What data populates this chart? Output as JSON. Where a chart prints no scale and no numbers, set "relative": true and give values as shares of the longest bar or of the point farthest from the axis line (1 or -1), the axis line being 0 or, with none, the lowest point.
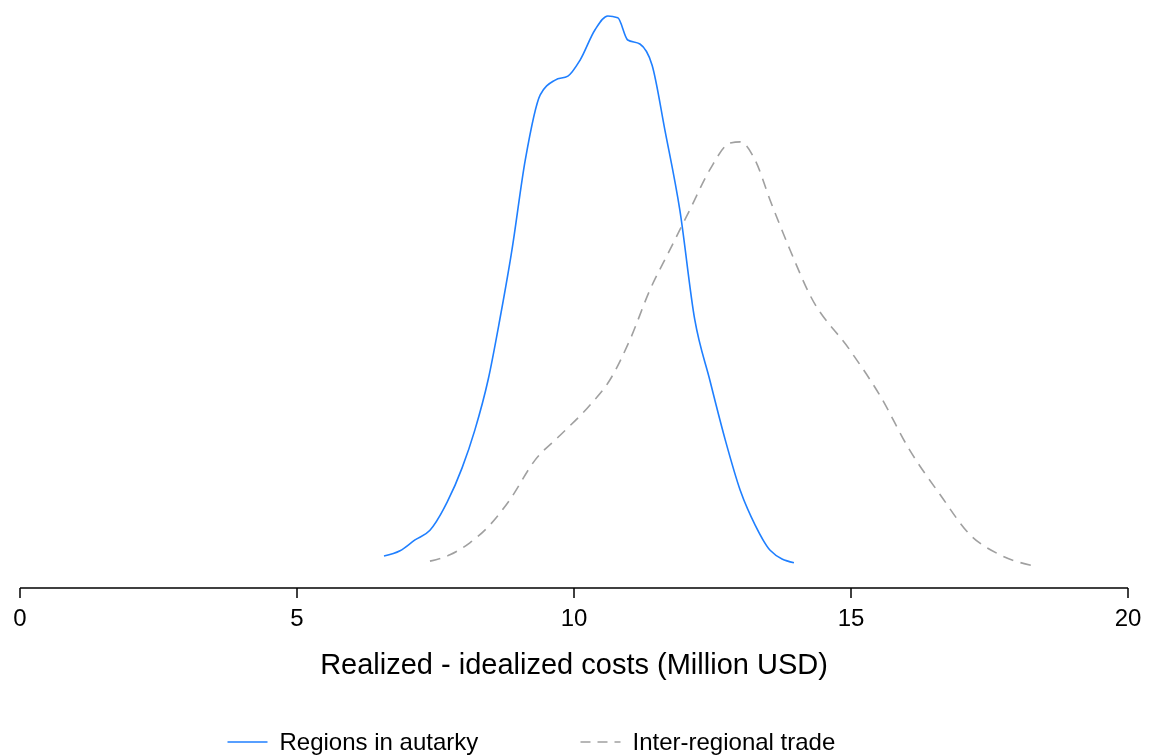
{
  "chart_data": {
    "type": "line",
    "relative": true,
    "xlabel": "Realized - idealized costs (Million USD)",
    "xlim": [
      0,
      20
    ],
    "xticks": [
      0,
      5,
      10,
      15,
      20
    ],
    "legend": "bottom",
    "grid": false,
    "series": [
      {
        "name": "Regions in autarky",
        "color": "#1f7fff",
        "line_style": "solid",
        "x": [
          6.57,
          6.86,
          7.13,
          7.4,
          7.71,
          7.98,
          8.21,
          8.45,
          8.66,
          8.88,
          9.12,
          9.39,
          9.66,
          9.89,
          10.11,
          10.38,
          10.61,
          10.79,
          10.97,
          11.19,
          11.41,
          11.64,
          11.91,
          12.18,
          12.45,
          12.73,
          13.0,
          13.27,
          13.54,
          13.97
        ],
        "values": [
          0.056,
          0.065,
          0.084,
          0.101,
          0.15,
          0.21,
          0.276,
          0.364,
          0.469,
          0.591,
          0.748,
          0.862,
          0.888,
          0.895,
          0.923,
          0.976,
          1.0,
          0.997,
          0.958,
          0.951,
          0.914,
          0.801,
          0.661,
          0.469,
          0.364,
          0.259,
          0.171,
          0.11,
          0.066,
          0.044
        ]
      },
      {
        "name": "Inter-regional trade",
        "color": "#a0a0a0",
        "line_style": "dashed",
        "x": [
          7.4,
          7.76,
          8.12,
          8.48,
          8.84,
          9.3,
          9.75,
          10.29,
          10.65,
          11.01,
          11.37,
          11.73,
          12.09,
          12.45,
          12.82,
          13.0,
          13.27,
          13.54,
          13.9,
          14.26,
          14.98,
          15.52,
          16.06,
          16.61,
          17.15,
          17.69,
          18.32
        ],
        "values": [
          0.047,
          0.058,
          0.079,
          0.11,
          0.154,
          0.224,
          0.267,
          0.32,
          0.364,
          0.434,
          0.521,
          0.591,
          0.661,
          0.731,
          0.778,
          0.78,
          0.748,
          0.678,
          0.591,
          0.512,
          0.416,
          0.337,
          0.241,
          0.163,
          0.093,
          0.058,
          0.038
        ]
      }
    ]
  }
}
